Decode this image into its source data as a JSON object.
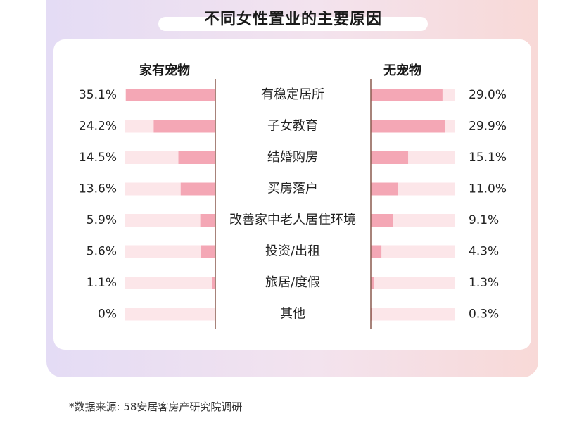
{
  "title": "不同女性置业的主要原因",
  "source": "*数据来源: 58安居客房产研究院调研",
  "colors": {
    "bar": "#f4a7b5",
    "track": "#fce6e9",
    "divider": "#8a5a4f"
  },
  "chart_data": {
    "type": "bar",
    "categories": [
      "有稳定居所",
      "子女教育",
      "结婚购房",
      "买房落户",
      "改善家中老人居住环境",
      "投资/出租",
      "旅居/度假",
      "其他"
    ],
    "series": [
      {
        "name": "家有宠物",
        "values": [
          35.1,
          24.2,
          14.5,
          13.6,
          5.9,
          5.6,
          1.1,
          0
        ],
        "labels": [
          "35.1%",
          "24.2%",
          "14.5%",
          "13.6%",
          "5.9%",
          "5.6%",
          "1.1%",
          "0%"
        ]
      },
      {
        "name": "无宠物",
        "values": [
          29.0,
          29.9,
          15.1,
          11.0,
          9.1,
          4.3,
          1.3,
          0.3
        ],
        "labels": [
          "29.0%",
          "29.9%",
          "15.1%",
          "11.0%",
          "9.1%",
          "4.3%",
          "1.3%",
          "0.3%"
        ]
      }
    ],
    "xlim": [
      0,
      35.1
    ]
  }
}
